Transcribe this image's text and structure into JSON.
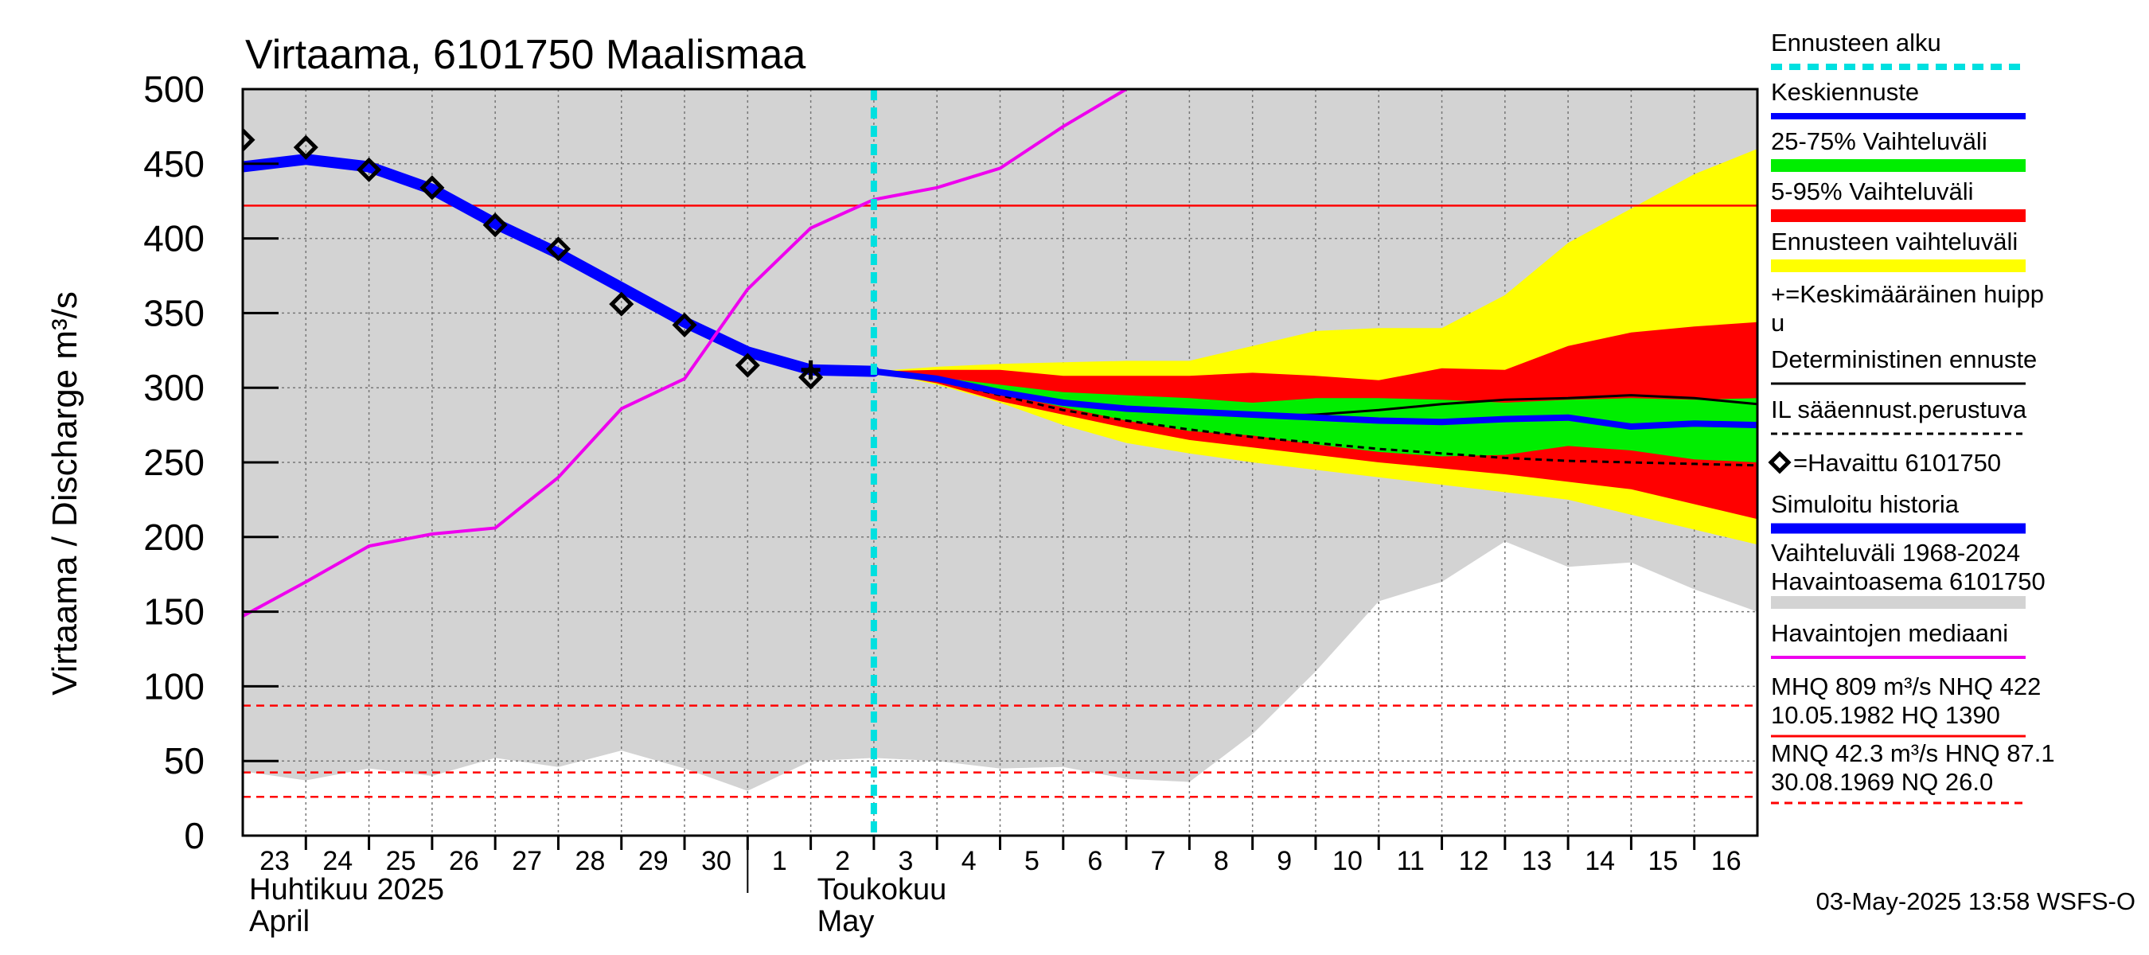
{
  "chart_data": {
    "type": "line",
    "title": "Virtaama, 6101750 Maalismaa",
    "ylabel": "Virtaama / Discharge   m³/s",
    "ylim": [
      0,
      500
    ],
    "yticks": [
      0,
      50,
      100,
      150,
      200,
      250,
      300,
      350,
      400,
      450,
      500
    ],
    "xlim": [
      0,
      24
    ],
    "x_tick_labels": [
      "23",
      "24",
      "25",
      "26",
      "27",
      "28",
      "29",
      "30",
      "1",
      "2",
      "3",
      "4",
      "5",
      "6",
      "7",
      "8",
      "9",
      "10",
      "11",
      "12",
      "13",
      "14",
      "15",
      "16"
    ],
    "month_labels": [
      {
        "x": 0,
        "fi": "Huhtikuu  2025",
        "en": "April"
      },
      {
        "x": 9,
        "fi": "Toukokuu",
        "en": "May"
      }
    ],
    "month_separator_x": 8,
    "forecast_start_x": 10,
    "history_range": {
      "x": [
        0,
        1,
        2,
        3,
        4,
        5,
        6,
        7,
        8,
        9,
        10,
        11,
        12,
        13,
        14,
        15,
        16,
        17,
        18,
        19,
        20,
        21,
        22,
        23,
        24
      ],
      "upper": [
        500,
        500,
        500,
        500,
        500,
        500,
        500,
        500,
        500,
        500,
        500,
        500,
        500,
        500,
        500,
        500,
        500,
        500,
        500,
        500,
        500,
        500,
        500,
        500,
        500
      ],
      "lower": [
        43,
        37,
        45,
        40,
        52,
        46,
        57,
        45,
        30,
        50,
        52,
        50,
        45,
        46,
        38,
        36,
        68,
        110,
        157,
        170,
        197,
        180,
        183,
        165,
        150
      ]
    },
    "forecast_band_full": {
      "x": [
        10,
        11,
        12,
        13,
        14,
        15,
        16,
        17,
        18,
        19,
        20,
        21,
        22,
        23,
        24
      ],
      "upper": [
        311,
        314,
        316,
        317,
        318,
        318,
        328,
        338,
        340,
        340,
        362,
        397,
        420,
        443,
        460
      ],
      "lower": [
        311,
        302,
        290,
        275,
        263,
        256,
        250,
        245,
        240,
        235,
        230,
        225,
        215,
        205,
        195
      ]
    },
    "band_5_95": {
      "x": [
        10,
        11,
        12,
        13,
        14,
        15,
        16,
        17,
        18,
        19,
        20,
        21,
        22,
        23,
        24
      ],
      "upper": [
        311,
        312,
        312,
        308,
        308,
        308,
        310,
        308,
        305,
        313,
        312,
        328,
        337,
        341,
        344
      ],
      "lower": [
        311,
        303,
        291,
        282,
        273,
        265,
        260,
        255,
        250,
        246,
        242,
        237,
        232,
        222,
        212
      ]
    },
    "band_25_75": {
      "x": [
        10,
        11,
        12,
        13,
        14,
        15,
        16,
        17,
        18,
        19,
        20,
        21,
        22,
        23,
        24
      ],
      "upper": [
        311,
        307,
        302,
        297,
        295,
        293,
        290,
        293,
        293,
        292,
        290,
        292,
        293,
        292,
        293
      ],
      "lower": [
        311,
        305,
        296,
        287,
        278,
        271,
        268,
        262,
        257,
        254,
        255,
        261,
        258,
        252,
        250
      ]
    },
    "series": [
      {
        "name": "Keskiennuste",
        "color": "#0000ff",
        "x": [
          10,
          11,
          12,
          13,
          14,
          15,
          16,
          17,
          18,
          19,
          20,
          21,
          22,
          23,
          24
        ],
        "y": [
          311,
          306,
          297,
          290,
          286,
          284,
          282,
          280,
          278,
          277,
          279,
          280,
          274,
          276,
          275
        ]
      },
      {
        "name": "Deterministinen ennuste",
        "color": "#000000",
        "x": [
          10,
          11,
          12,
          13,
          14,
          15,
          16,
          17,
          18,
          19,
          20,
          21,
          22,
          23,
          24
        ],
        "y": [
          311,
          307,
          298,
          290,
          285,
          283,
          281,
          282,
          285,
          289,
          292,
          293,
          295,
          293,
          289
        ]
      },
      {
        "name": "IL sääennust.perustuva",
        "color": "#000000",
        "dashed": true,
        "x": [
          10,
          11,
          12,
          13,
          14,
          15,
          16,
          17,
          18,
          19,
          20,
          21,
          22,
          23,
          24
        ],
        "y": [
          311,
          305,
          295,
          285,
          278,
          272,
          267,
          263,
          259,
          256,
          253,
          251,
          250,
          249,
          248
        ]
      },
      {
        "name": "Simuloitu historia",
        "color": "#0000ff",
        "x": [
          0,
          1,
          2,
          3,
          4,
          5,
          6,
          7,
          8,
          9,
          10
        ],
        "y": [
          448,
          453,
          448,
          433,
          410,
          390,
          367,
          344,
          324,
          312,
          311
        ]
      },
      {
        "name": "Havaintojen mediaani",
        "color": "#ee00ee",
        "x": [
          0,
          1,
          2,
          3,
          4,
          5,
          6,
          7,
          8,
          9,
          10,
          11,
          12,
          13,
          14
        ],
        "y": [
          147,
          170,
          194,
          202,
          206,
          240,
          286,
          306,
          366,
          407,
          426,
          434,
          447,
          475,
          500
        ]
      },
      {
        "name": "Havaittu 6101750",
        "color": "#000000",
        "marker": "diamond",
        "x": [
          0,
          1,
          2,
          3,
          4,
          5,
          6,
          7,
          8,
          9
        ],
        "y": [
          466,
          461,
          446,
          434,
          409,
          393,
          356,
          342,
          315,
          307
        ]
      },
      {
        "name": "Keskimääräinen huippu",
        "color": "#000000",
        "marker": "plus",
        "x": [
          9
        ],
        "y": [
          312
        ]
      }
    ],
    "reference_lines": [
      {
        "label": "NHQ",
        "value": 422,
        "color": "#ff0000",
        "style": "solid"
      },
      {
        "label": "HNQ",
        "value": 87.1,
        "color": "#ff0000",
        "style": "dashed"
      },
      {
        "label": "MNQ",
        "value": 42.3,
        "color": "#ff0000",
        "style": "dashed"
      },
      {
        "label": "NQ",
        "value": 26.0,
        "color": "#ff0000",
        "style": "dashed"
      }
    ],
    "legend_position": "right",
    "legend": [
      {
        "text": "Ennusteen alku",
        "swatch": "dash-cyan"
      },
      {
        "text": "Keskiennuste",
        "swatch": "line-blue"
      },
      {
        "text": "25-75% Vaihteluväli",
        "swatch": "band-green"
      },
      {
        "text": "5-95% Vaihteluväli",
        "swatch": "band-red"
      },
      {
        "text": "Ennusteen vaihteluväli",
        "swatch": "band-yellow"
      },
      {
        "text": "+=Keskimääräinen huipp",
        "text2": "u",
        "swatch": "none"
      },
      {
        "text": "Deterministinen ennuste",
        "swatch": "line-black"
      },
      {
        "text": "IL sääennust.perustuva",
        "swatch": "dash-black"
      },
      {
        "text": "=Havaittu 6101750",
        "swatch": "diamond-prefix"
      },
      {
        "text": "Simuloitu historia",
        "swatch": "line-blue-thick"
      },
      {
        "text": "Vaihteluväli 1968-2024",
        "text2": " Havaintoasema 6101750",
        "swatch": "band-gray"
      },
      {
        "text": "Havaintojen mediaani",
        "swatch": "line-magenta"
      },
      {
        "text": "MHQ  809 m³/s NHQ  422",
        "text2": "10.05.1982 HQ 1390",
        "swatch": "line-red"
      },
      {
        "text": "MNQ 42.3 m³/s HNQ 87.1",
        "text2": "30.08.1969 NQ 26.0",
        "swatch": "dash-red"
      }
    ],
    "timestamp": "03-May-2025 13:58 WSFS-O"
  },
  "colors": {
    "history_band": "#d3d3d3",
    "yellow": "#ffff00",
    "red": "#ff0000",
    "green": "#00ee00",
    "blue": "#0000ff",
    "cyan": "#00e0e0",
    "magenta": "#ee00ee",
    "grid": "#777777"
  }
}
